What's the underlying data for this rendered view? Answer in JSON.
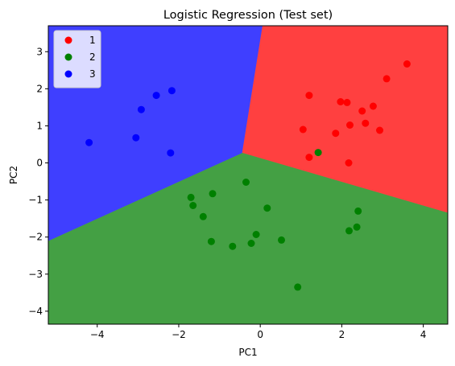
{
  "chart_data": {
    "type": "scatter",
    "title": "Logistic Regression (Test set)",
    "xlabel": "PC1",
    "ylabel": "PC2",
    "xlim": [
      -5.2,
      4.6
    ],
    "ylim": [
      -4.35,
      3.7
    ],
    "xticks": [
      -4,
      -2,
      0,
      2,
      4
    ],
    "yticks": [
      -4,
      -3,
      -2,
      -1,
      0,
      1,
      2,
      3
    ],
    "legend_position": "upper-left",
    "regions": [
      {
        "class": "1",
        "color": "#ff4040",
        "vertices": [
          [
            0.05,
            3.7
          ],
          [
            4.6,
            3.7
          ],
          [
            4.6,
            -1.35
          ],
          [
            -0.45,
            0.27
          ]
        ]
      },
      {
        "class": "2",
        "color": "#44a044",
        "vertices": [
          [
            -5.2,
            -2.1
          ],
          [
            -0.45,
            0.27
          ],
          [
            4.6,
            -1.35
          ],
          [
            4.6,
            -4.35
          ],
          [
            -5.2,
            -4.35
          ]
        ]
      },
      {
        "class": "3",
        "color": "#3f3fff",
        "vertices": [
          [
            -5.2,
            3.7
          ],
          [
            0.05,
            3.7
          ],
          [
            -0.45,
            0.27
          ],
          [
            -5.2,
            -2.1
          ]
        ]
      }
    ],
    "series": [
      {
        "name": "1",
        "color": "#ff0000",
        "points": [
          [
            1.2,
            1.82
          ],
          [
            1.05,
            0.9
          ],
          [
            1.2,
            0.15
          ],
          [
            1.85,
            0.8
          ],
          [
            1.97,
            1.65
          ],
          [
            2.13,
            1.63
          ],
          [
            2.2,
            1.02
          ],
          [
            2.17,
            0.0
          ],
          [
            2.5,
            1.4
          ],
          [
            2.58,
            1.07
          ],
          [
            2.77,
            1.53
          ],
          [
            2.93,
            0.88
          ],
          [
            3.1,
            2.27
          ],
          [
            3.6,
            2.67
          ]
        ]
      },
      {
        "name": "2",
        "color": "#008000",
        "points": [
          [
            1.42,
            0.28
          ],
          [
            -0.35,
            -0.52
          ],
          [
            -1.7,
            -0.93
          ],
          [
            -1.65,
            -1.15
          ],
          [
            -1.17,
            -0.83
          ],
          [
            -1.4,
            -1.45
          ],
          [
            0.17,
            -1.22
          ],
          [
            -1.2,
            -2.12
          ],
          [
            -0.68,
            -2.25
          ],
          [
            -0.22,
            -2.17
          ],
          [
            -0.1,
            -1.93
          ],
          [
            0.52,
            -2.08
          ],
          [
            0.92,
            -3.35
          ],
          [
            2.18,
            -1.83
          ],
          [
            2.37,
            -1.73
          ],
          [
            2.4,
            -1.3
          ]
        ]
      },
      {
        "name": "3",
        "color": "#0000ff",
        "points": [
          [
            -4.2,
            0.55
          ],
          [
            -3.05,
            0.68
          ],
          [
            -2.92,
            1.44
          ],
          [
            -2.55,
            1.82
          ],
          [
            -2.17,
            1.95
          ],
          [
            -2.2,
            0.27
          ]
        ]
      }
    ]
  }
}
